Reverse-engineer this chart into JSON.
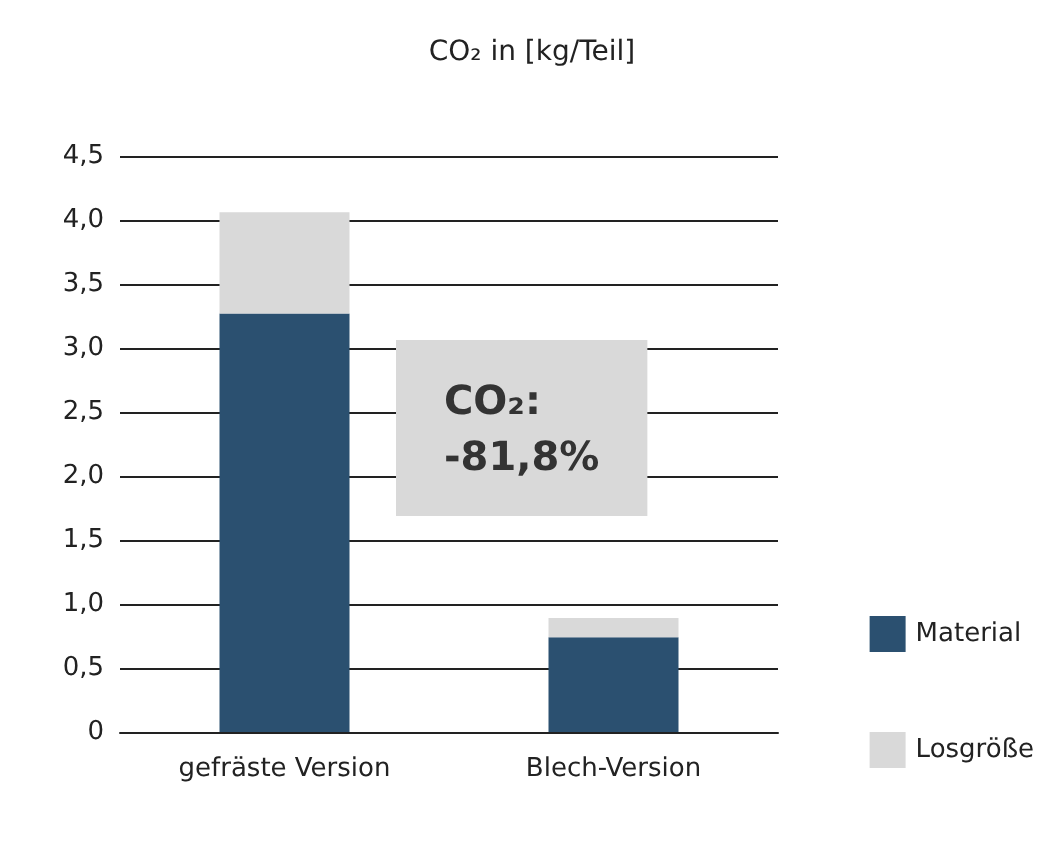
{
  "chart_data": {
    "type": "bar",
    "title": "CO₂ in [kg/Teil]",
    "categories": [
      "gefräste Version",
      "Blech-Version"
    ],
    "stacked": true,
    "series": [
      {
        "name": "Material",
        "color": "#2b5070",
        "values": [
          3.27,
          0.74
        ]
      },
      {
        "name": "Losgröße",
        "color": "#d9d9d9",
        "values": [
          0.79,
          0.15
        ]
      }
    ],
    "ylim": [
      0,
      4.5
    ],
    "yticks": [
      {
        "value": 0,
        "label": "0"
      },
      {
        "value": 0.5,
        "label": "0,5"
      },
      {
        "value": 1,
        "label": "1,0"
      },
      {
        "value": 1.5,
        "label": "1,5"
      },
      {
        "value": 2,
        "label": "2,0"
      },
      {
        "value": 2.5,
        "label": "2,5"
      },
      {
        "value": 3,
        "label": "3,0"
      },
      {
        "value": 3.5,
        "label": "3,5"
      },
      {
        "value": 4,
        "label": "4,0"
      },
      {
        "value": 4.5,
        "label": "4,5"
      }
    ],
    "grid": "y",
    "legend": "right",
    "annotations": [
      "CO₂:\n-81,8%"
    ]
  }
}
